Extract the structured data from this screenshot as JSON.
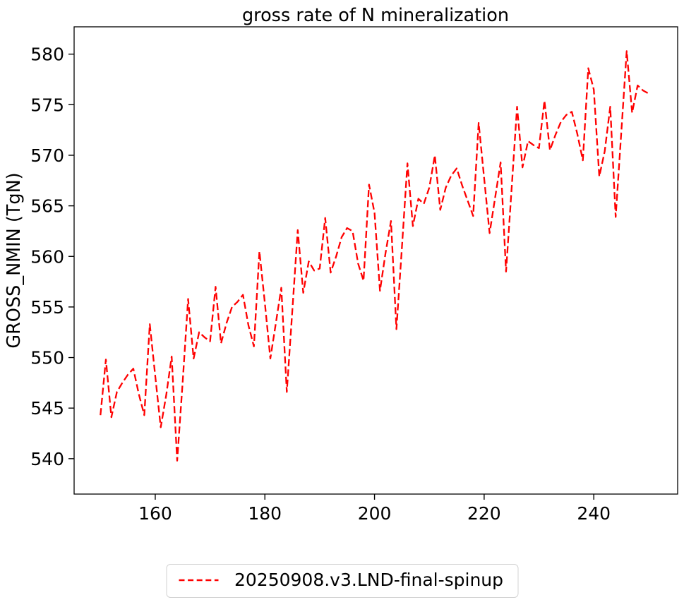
{
  "title": "gross rate of N mineralization",
  "legend": {
    "label": "20250908.v3.LND-final-spinup"
  },
  "colors": {
    "line": "#ff0000",
    "text": "#000000",
    "legend_border": "#d2d2d2",
    "background": "#ffffff"
  },
  "chart_data": {
    "type": "line",
    "title": "gross rate of N mineralization",
    "xlabel": "",
    "ylabel": "GROSS_NMIN (TgN)",
    "legend_entries": [
      "20250908.v3.LND-final-spinup"
    ],
    "legend_position": "lower center, outside axes",
    "grid": false,
    "line_style": "dashed",
    "line_color": "#ff0000",
    "xticks": [
      160,
      180,
      200,
      220,
      240
    ],
    "yticks": [
      540,
      545,
      550,
      555,
      560,
      565,
      570,
      575,
      580
    ],
    "xlim": [
      145.2,
      255.3
    ],
    "ylim": [
      536.5,
      582.7
    ],
    "x": [
      150,
      151,
      152,
      153,
      154,
      155,
      156,
      157,
      158,
      159,
      160,
      161,
      162,
      163,
      164,
      165,
      166,
      167,
      168,
      169,
      170,
      171,
      172,
      173,
      174,
      175,
      176,
      177,
      178,
      179,
      180,
      181,
      182,
      183,
      184,
      185,
      186,
      187,
      188,
      189,
      190,
      191,
      192,
      193,
      194,
      195,
      196,
      197,
      198,
      199,
      200,
      201,
      202,
      203,
      204,
      205,
      206,
      207,
      208,
      209,
      210,
      211,
      212,
      213,
      214,
      215,
      216,
      217,
      218,
      219,
      220,
      221,
      222,
      223,
      224,
      225,
      226,
      227,
      228,
      229,
      230,
      231,
      232,
      233,
      234,
      235,
      236,
      237,
      238,
      239,
      240,
      241,
      242,
      243,
      244,
      245,
      246,
      247,
      248,
      249,
      250
    ],
    "series": [
      {
        "name": "20250908.v3.LND-final-spinup",
        "color": "#ff0000",
        "values": [
          544.3,
          549.8,
          544.1,
          546.6,
          547.5,
          548.3,
          548.9,
          546.4,
          544.3,
          553.3,
          548.2,
          543.1,
          546.3,
          550.1,
          539.8,
          547.6,
          555.8,
          549.9,
          552.5,
          552.0,
          551.6,
          557.0,
          551.4,
          553.4,
          555.0,
          555.5,
          556.2,
          553.2,
          551.1,
          560.5,
          555.4,
          549.9,
          553.4,
          556.9,
          546.6,
          554.6,
          562.6,
          556.4,
          559.5,
          558.6,
          558.8,
          563.8,
          558.4,
          560.0,
          561.9,
          562.8,
          562.5,
          559.3,
          557.6,
          567.1,
          564.3,
          556.6,
          560.3,
          563.5,
          552.8,
          560.9,
          569.2,
          563.0,
          565.7,
          565.2,
          566.8,
          570.0,
          564.6,
          566.8,
          568.0,
          568.7,
          567.0,
          565.5,
          564.0,
          573.2,
          567.7,
          562.3,
          565.8,
          569.3,
          558.5,
          566.6,
          574.8,
          568.8,
          571.4,
          571.0,
          570.7,
          575.4,
          570.5,
          572.0,
          573.3,
          574.0,
          574.3,
          572.1,
          569.5,
          578.6,
          576.5,
          567.9,
          570.4,
          574.8,
          563.9,
          572.1,
          580.3,
          574.2,
          576.9,
          576.4,
          576.1
        ]
      }
    ]
  }
}
